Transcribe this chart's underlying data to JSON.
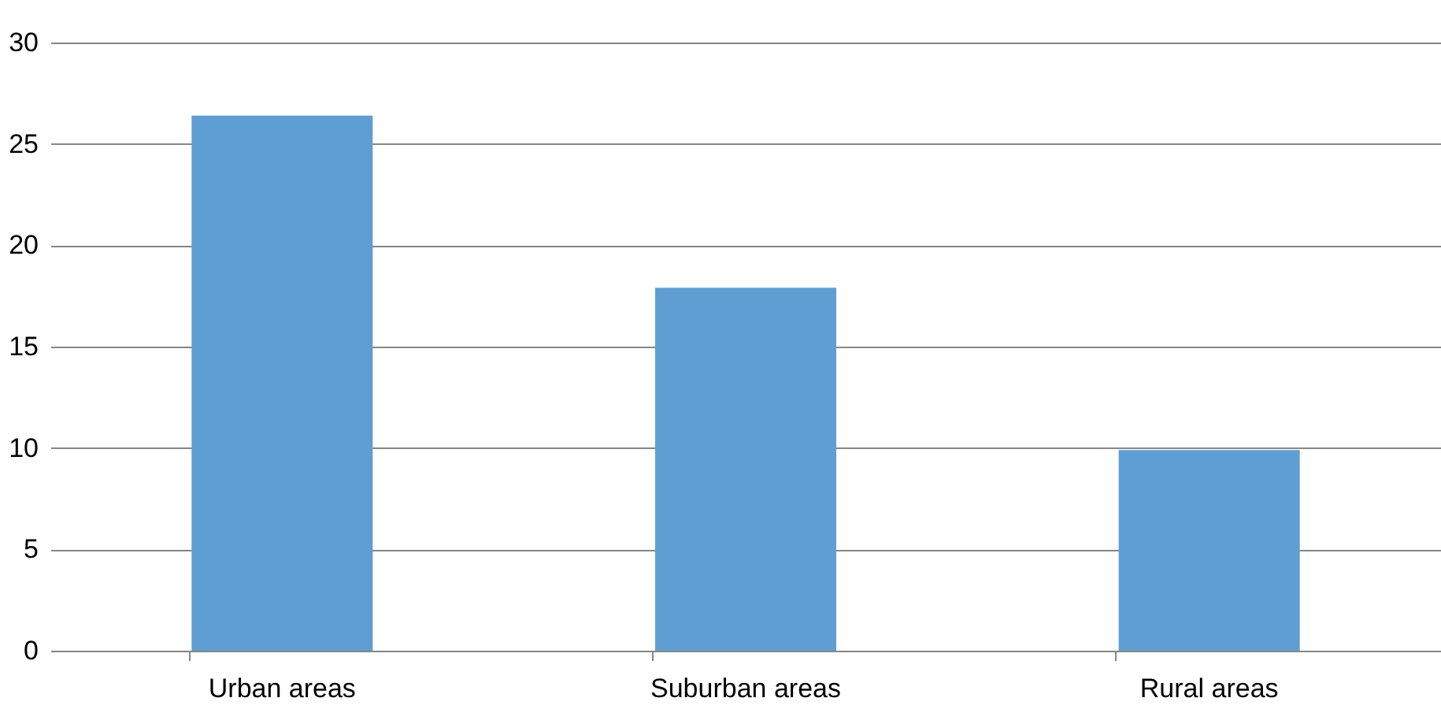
{
  "chart_data": {
    "type": "bar",
    "categories": [
      "Urban areas",
      "Suburban areas",
      "Rural areas"
    ],
    "values": [
      26.4,
      17.9,
      9.9
    ],
    "color": "#5f9ed3",
    "ylim": [
      0,
      30
    ],
    "yticks": [
      0,
      5,
      10,
      15,
      20,
      25,
      30
    ],
    "grid": "y"
  }
}
